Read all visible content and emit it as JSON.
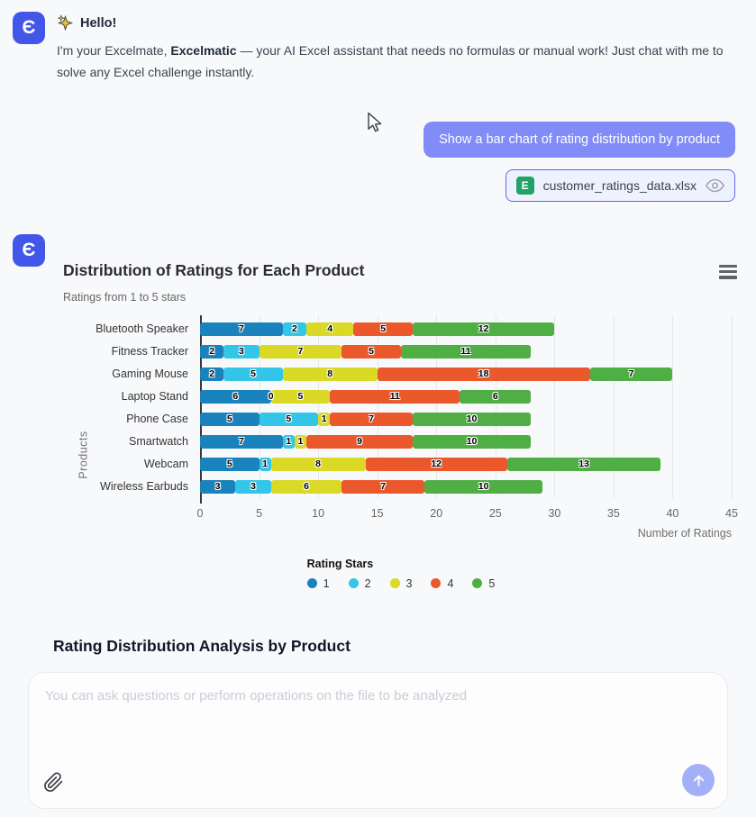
{
  "logo": {
    "letter": "Є"
  },
  "greeting": {
    "title": "Hello!",
    "body_prefix": "I'm your Excelmate, ",
    "body_bold": "Excelmatic",
    "body_suffix": " — your AI Excel assistant that needs no formulas or manual work! Just chat with me to solve any Excel challenge instantly."
  },
  "user_message": {
    "text": "Show a bar chart of rating distribution by product"
  },
  "attachment": {
    "icon_letter": "E",
    "filename": "customer_ratings_data.xlsx"
  },
  "chart_data": {
    "type": "bar",
    "orientation": "horizontal",
    "stacked": true,
    "title": "Distribution of Ratings for Each Product",
    "subtitle": "Ratings from 1 to 5 stars",
    "categories": [
      "Bluetooth Speaker",
      "Fitness Tracker",
      "Gaming Mouse",
      "Laptop Stand",
      "Phone Case",
      "Smartwatch",
      "Webcam",
      "Wireless Earbuds"
    ],
    "series": [
      {
        "name": "1",
        "color": "#1a83bd",
        "values": [
          7,
          2,
          2,
          6,
          5,
          7,
          5,
          3
        ]
      },
      {
        "name": "2",
        "color": "#33c6e8",
        "values": [
          2,
          3,
          5,
          0,
          5,
          1,
          1,
          3
        ]
      },
      {
        "name": "3",
        "color": "#d9d926",
        "values": [
          4,
          7,
          8,
          5,
          1,
          1,
          8,
          6
        ]
      },
      {
        "name": "4",
        "color": "#ea582c",
        "values": [
          5,
          5,
          18,
          11,
          7,
          9,
          12,
          7
        ]
      },
      {
        "name": "5",
        "color": "#4fae44",
        "values": [
          12,
          11,
          7,
          6,
          10,
          10,
          13,
          10
        ]
      }
    ],
    "xlabel": "Number of Ratings",
    "ylabel": "Products",
    "xlim": [
      0,
      45
    ],
    "xticks": [
      0,
      5,
      10,
      15,
      20,
      25,
      30,
      35,
      40,
      45
    ],
    "legend_title": "Rating Stars",
    "legend_position": "bottom",
    "grid": true
  },
  "analysis": {
    "heading": "Rating Distribution Analysis by Product"
  },
  "composer": {
    "placeholder": "You can ask questions or perform operations on the file to be analyzed"
  }
}
